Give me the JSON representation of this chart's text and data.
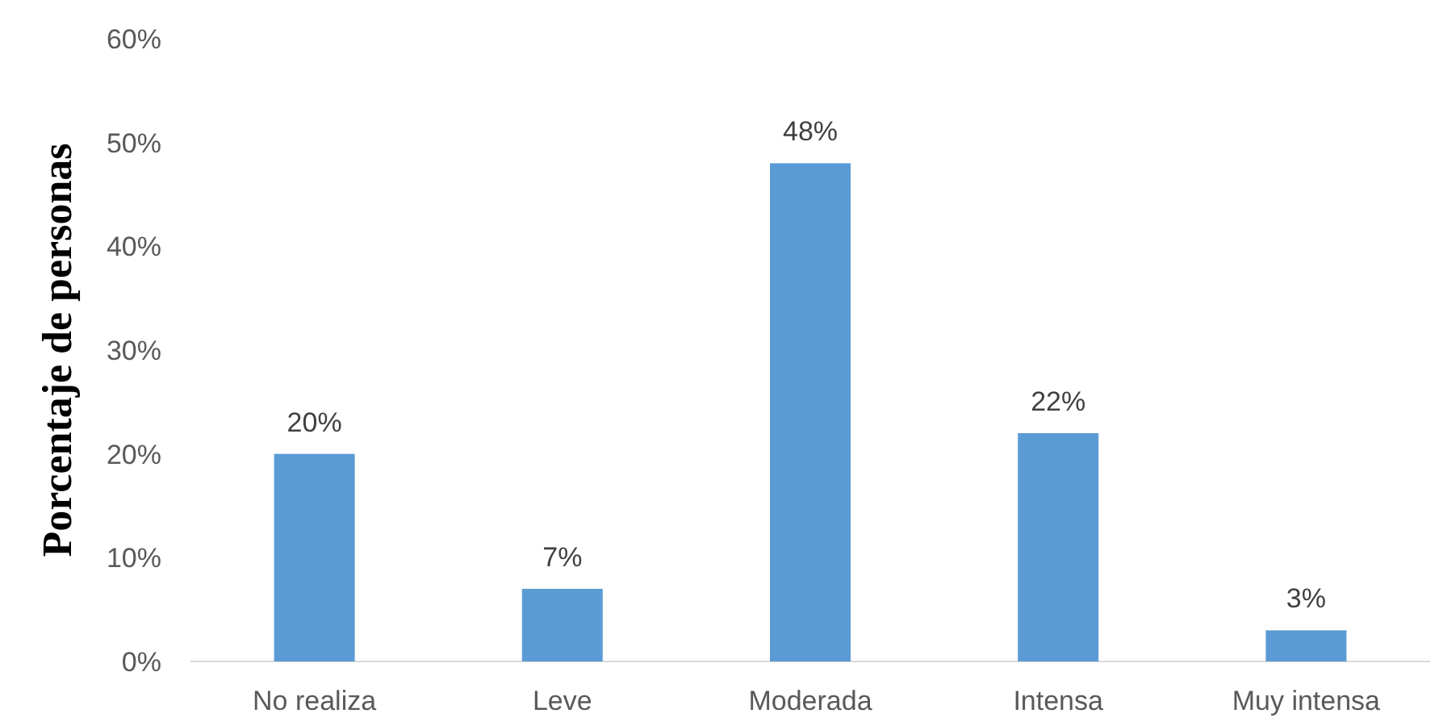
{
  "chart_data": {
    "type": "bar",
    "ylabel": "Porcentaje de personas",
    "categories": [
      "No realiza",
      "Leve",
      "Moderada",
      "Intensa",
      "Muy intensa"
    ],
    "values": [
      20,
      7,
      48,
      22,
      3
    ],
    "color": "#5b9bd5",
    "value_labels": [
      "20%",
      "7%",
      "48%",
      "22%",
      "3%"
    ],
    "ylim": [
      0,
      60
    ],
    "yticks": [
      {
        "value": 0,
        "label": "0%"
      },
      {
        "value": 10,
        "label": "10%"
      },
      {
        "value": 20,
        "label": "20%"
      },
      {
        "value": 30,
        "label": "30%"
      },
      {
        "value": 40,
        "label": "40%"
      },
      {
        "value": 50,
        "label": "50%"
      },
      {
        "value": 60,
        "label": "60%"
      }
    ],
    "grid": false
  }
}
